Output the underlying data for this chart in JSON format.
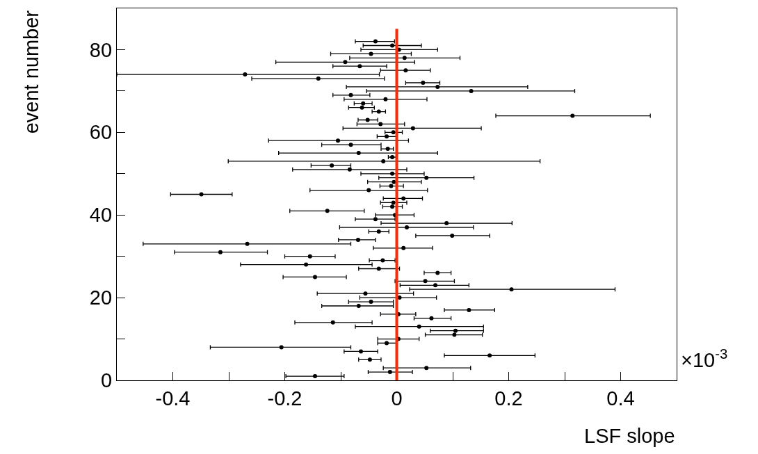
{
  "chart_data": {
    "type": "scatter",
    "xlabel": "LSF slope",
    "ylabel": "event number",
    "annotations": [
      "×10$^{-3}$"
    ],
    "xlim": [
      -0.5,
      0.5
    ],
    "ylim": [
      0,
      90
    ],
    "xticks": [
      {
        "value": -0.5,
        "label": null
      },
      -0.4,
      {
        "value": -0.3,
        "label": null
      },
      -0.2,
      {
        "value": -0.1,
        "label": null
      },
      0,
      {
        "value": 0.1,
        "label": null
      },
      0.2,
      {
        "value": 0.3,
        "label": null
      },
      0.4,
      {
        "value": 0.5,
        "label": null
      }
    ],
    "yticks": [
      0,
      {
        "value": 10,
        "label": null
      },
      20,
      {
        "value": 30,
        "label": null
      },
      40,
      {
        "value": 50,
        "label": null
      },
      60,
      {
        "value": 70,
        "label": null
      },
      80
    ],
    "marker": "circle",
    "ref_lines": [
      {
        "axis": "x",
        "value": 0,
        "color": "#ff2a00"
      }
    ],
    "series": [
      {
        "color": "#000000",
        "x": [
          -0.146,
          -0.012,
          0.053,
          -0.048,
          0.166,
          -0.064,
          -0.206,
          -0.018,
          0.003,
          0.103,
          0.105,
          0.04,
          -0.114,
          0.062,
          0.003,
          0.129,
          -0.068,
          -0.046,
          0.005,
          -0.056,
          0.205,
          0.069,
          0.051,
          -0.146,
          0.073,
          -0.032,
          -0.162,
          -0.025,
          -0.155,
          -0.315,
          0.012,
          -0.267,
          -0.069,
          0.099,
          -0.032,
          0.018,
          0.089,
          -0.038,
          -0.003,
          -0.124,
          -0.008,
          -0.006,
          0.012,
          -0.349,
          -0.05,
          -0.01,
          -0.005,
          0.053,
          -0.008,
          -0.084,
          -0.116,
          -0.024,
          -0.008,
          -0.068,
          -0.016,
          -0.082,
          -0.105,
          -0.018,
          -0.006,
          0.029,
          -0.029,
          -0.052,
          0.314,
          -0.032,
          -0.062,
          -0.06,
          -0.02,
          -0.082,
          0.133,
          0.073,
          0.047,
          -0.14,
          -0.271,
          0.016,
          -0.066,
          -0.092,
          0.014,
          -0.046,
          0.004,
          -0.008,
          -0.038
        ],
        "values": [
          1,
          2,
          3,
          5,
          6,
          7,
          8,
          9,
          10,
          11,
          12,
          13,
          14,
          15,
          16,
          17,
          18,
          19,
          20,
          21,
          22,
          23,
          24,
          25,
          26,
          27,
          28,
          29,
          30,
          31,
          32,
          33,
          34,
          35,
          36,
          37,
          38,
          39,
          40,
          41,
          42,
          43,
          44,
          45,
          46,
          47,
          48,
          49,
          50,
          51,
          52,
          53,
          54,
          55,
          56,
          57,
          58,
          59,
          60,
          61,
          62,
          63,
          64,
          65,
          66,
          67,
          68,
          69,
          70,
          71,
          72,
          73,
          74,
          75,
          76,
          77,
          78,
          79,
          80,
          81,
          82
        ],
        "xerrors": [
          [
            -0.198,
            -0.094
          ],
          [
            -0.051,
            0.028
          ],
          [
            -0.024,
            0.132
          ],
          [
            -0.068,
            -0.028
          ],
          [
            0.085,
            0.247
          ],
          [
            -0.094,
            -0.034
          ],
          [
            -0.333,
            -0.082
          ],
          [
            -0.034,
            0.0
          ],
          [
            -0.034,
            0.04
          ],
          [
            0.051,
            0.153
          ],
          [
            0.06,
            0.155
          ],
          [
            -0.074,
            0.155
          ],
          [
            -0.182,
            -0.044
          ],
          [
            0.031,
            0.097
          ],
          [
            -0.029,
            0.034
          ],
          [
            0.085,
            0.175
          ],
          [
            -0.134,
            -0.006
          ],
          [
            -0.086,
            -0.006
          ],
          [
            -0.066,
            0.071
          ],
          [
            -0.142,
            0.03
          ],
          [
            0.023,
            0.39
          ],
          [
            0.006,
            0.129
          ],
          [
            -0.003,
            0.103
          ],
          [
            -0.203,
            -0.09
          ],
          [
            0.049,
            0.097
          ],
          [
            -0.068,
            0.005
          ],
          [
            -0.279,
            -0.044
          ],
          [
            -0.049,
            -0.003
          ],
          [
            -0.2,
            -0.11
          ],
          [
            -0.397,
            -0.231
          ],
          [
            -0.042,
            0.064
          ],
          [
            -0.453,
            -0.082
          ],
          [
            -0.104,
            -0.038
          ],
          [
            0.034,
            0.166
          ],
          [
            -0.05,
            -0.014
          ],
          [
            -0.102,
            0.137
          ],
          [
            -0.028,
            0.206
          ],
          [
            -0.074,
            -0.003
          ],
          [
            -0.038,
            0.031
          ],
          [
            -0.191,
            -0.058
          ],
          [
            -0.025,
            0.01
          ],
          [
            -0.029,
            0.018
          ],
          [
            -0.024,
            0.046
          ],
          [
            -0.404,
            -0.294
          ],
          [
            -0.155,
            0.055
          ],
          [
            -0.03,
            0.012
          ],
          [
            -0.052,
            0.044
          ],
          [
            -0.032,
            0.138
          ],
          [
            -0.064,
            0.049
          ],
          [
            -0.186,
            0.018
          ],
          [
            -0.153,
            -0.082
          ],
          [
            -0.301,
            0.256
          ],
          [
            -0.015,
            0.0
          ],
          [
            -0.211,
            0.073
          ],
          [
            -0.028,
            -0.006
          ],
          [
            -0.134,
            -0.028
          ],
          [
            -0.229,
            0.021
          ],
          [
            -0.035,
            0.0
          ],
          [
            -0.021,
            0.01
          ],
          [
            -0.096,
            0.151
          ],
          [
            -0.071,
            0.014
          ],
          [
            -0.069,
            -0.034
          ],
          [
            0.177,
            0.453
          ],
          [
            -0.044,
            -0.02
          ],
          [
            -0.086,
            -0.04
          ],
          [
            -0.076,
            -0.044
          ],
          [
            -0.094,
            0.054
          ],
          [
            -0.114,
            -0.048
          ],
          [
            -0.054,
            0.318
          ],
          [
            -0.09,
            0.234
          ],
          [
            0.016,
            0.077
          ],
          [
            -0.259,
            -0.022
          ],
          [
            -0.5,
            -0.031
          ],
          [
            -0.029,
            0.06
          ],
          [
            -0.114,
            -0.018
          ],
          [
            -0.216,
            0.032
          ],
          [
            -0.084,
            0.113
          ],
          [
            -0.118,
            0.026
          ],
          [
            -0.064,
            0.073
          ],
          [
            -0.06,
            0.044
          ],
          [
            -0.074,
            -0.004
          ]
        ]
      }
    ]
  }
}
